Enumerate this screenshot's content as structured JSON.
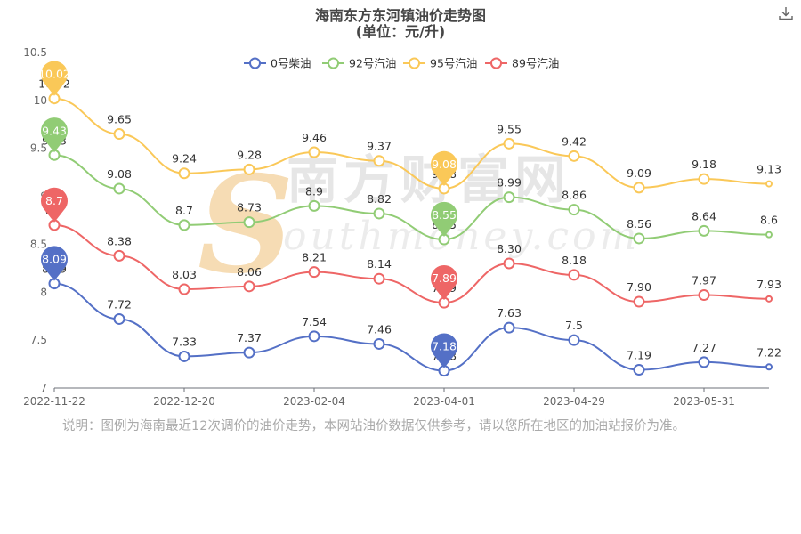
{
  "header": {
    "title": "海南东方东河镇油价走势图",
    "subtitle": "(单位：元/升)"
  },
  "note": "说明：图例为海南最近12次调价的油价走势，本网站油价数据仅供参考，请以您所在地区的加油站报价为准。",
  "watermark": {
    "text": "南方财富网",
    "sub": "outhmoney.com",
    "logo_letter": "S"
  },
  "chart_data": {
    "type": "line",
    "title": "海南东方东河镇油价走势图",
    "subtitle": "(单位：元/升)",
    "xlabel": "",
    "ylabel": "",
    "ylim": [
      7,
      10.5
    ],
    "yticks": [
      "7",
      "7.5",
      "8",
      "8.5",
      "9",
      "9.5",
      "10",
      "10.5"
    ],
    "x_tick_labels": [
      "2022-11-22",
      "2022-12-20",
      "2023-02-04",
      "2023-04-01",
      "2023-04-29",
      "2023-05-31"
    ],
    "x_tick_positions": [
      0,
      2,
      4,
      6,
      8,
      10
    ],
    "legend_position": "top",
    "grid": false,
    "series": [
      {
        "name": "0号柴油",
        "color": "#5470c6",
        "values": [
          8.09,
          7.72,
          7.33,
          7.37,
          7.54,
          7.46,
          7.18,
          7.63,
          7.5,
          7.19,
          7.27,
          7.22
        ],
        "labels": [
          "8.09",
          "7.72",
          "7.33",
          "7.37",
          "7.54",
          "7.46",
          "7.18",
          "7.63",
          "7.5",
          "7.19",
          "7.27",
          "7.22"
        ]
      },
      {
        "name": "92号汽油",
        "color": "#91cc75",
        "values": [
          9.43,
          9.08,
          8.7,
          8.73,
          8.9,
          8.82,
          8.55,
          8.99,
          8.86,
          8.56,
          8.64,
          8.6
        ],
        "labels": [
          "9.43",
          "9.08",
          "8.7",
          "8.73",
          "8.9",
          "8.82",
          "8.55",
          "8.99",
          "8.86",
          "8.56",
          "8.64",
          "8.6"
        ]
      },
      {
        "name": "95号汽油",
        "color": "#fac858",
        "values": [
          10.02,
          9.65,
          9.24,
          9.28,
          9.46,
          9.37,
          9.08,
          9.55,
          9.42,
          9.09,
          9.18,
          9.13
        ],
        "labels": [
          "10.02",
          "9.65",
          "9.24",
          "9.28",
          "9.46",
          "9.37",
          "9.08",
          "9.55",
          "9.42",
          "9.09",
          "9.18",
          "9.13"
        ]
      },
      {
        "name": "89号汽油",
        "color": "#ee6666",
        "values": [
          8.7,
          8.38,
          8.03,
          8.06,
          8.21,
          8.14,
          7.89,
          8.3,
          8.18,
          7.9,
          7.97,
          7.93
        ],
        "labels": [
          "8.7",
          "8.38",
          "8.03",
          "8.06",
          "8.21",
          "8.14",
          "7.89",
          "8.30",
          "8.18",
          "7.90",
          "7.97",
          "7.93"
        ]
      }
    ],
    "markers": [
      {
        "series": 0,
        "index": 0,
        "label": "8.09"
      },
      {
        "series": 0,
        "index": 6,
        "label": "7.18"
      },
      {
        "series": 1,
        "index": 0,
        "label": "9.43"
      },
      {
        "series": 1,
        "index": 6,
        "label": "8.55"
      },
      {
        "series": 2,
        "index": 0,
        "label": "10.02"
      },
      {
        "series": 2,
        "index": 6,
        "label": "9.08"
      },
      {
        "series": 3,
        "index": 0,
        "label": "8.7"
      },
      {
        "series": 3,
        "index": 6,
        "label": "7.89"
      }
    ]
  }
}
